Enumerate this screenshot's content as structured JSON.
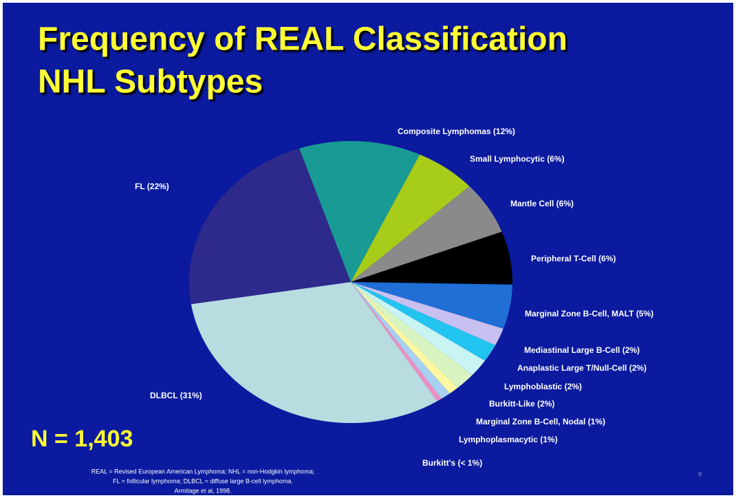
{
  "chart_data": {
    "type": "pie",
    "title_lines": [
      "Frequency of REAL Classification",
      "NHL Subtypes"
    ],
    "categories": [
      "Composite Lymphomas (12%)",
      "Small Lymphocytic (6%)",
      "Mantle Cell (6%)",
      "Peripheral T-Cell (6%)",
      "Marginal Zone B-Cell, MALT (5%)",
      "Mediastinal Large B-Cell (2%)",
      "Anaplastic Large T/Null-Cell (2%)",
      "Lymphoblastic (2%)",
      "Burkitt-Like (2%)",
      "Marginal Zone B-Cell, Nodal (1%)",
      "Lymphoplasmacytic (1%)",
      "Burkitt's (< 1%)",
      "DLBCL (31%)",
      "FL (22%)"
    ],
    "values": [
      12,
      6,
      6,
      6,
      5,
      2,
      2,
      2,
      2,
      1,
      1,
      0.5,
      31,
      22
    ],
    "colors": [
      "#1a9a94",
      "#a8cc1a",
      "#8a8a8a",
      "#000000",
      "#1f6fd6",
      "#c8c0f0",
      "#22c4f0",
      "#c8f4f4",
      "#d8f4c0",
      "#fff8a0",
      "#a8d0f0",
      "#f090c0",
      "#b8dce0",
      "#2e2a8c"
    ],
    "annotation": "N = 1,403",
    "footnote": [
      "REAL = Revised European American Lymphoma; NHL = non-Hodgkin lymphoma;",
      "FL = follicular lymphoma; DLBCL = diffuse large B-cell lymphoma.",
      "Armitage et al, 1998."
    ],
    "page_number": "9"
  }
}
